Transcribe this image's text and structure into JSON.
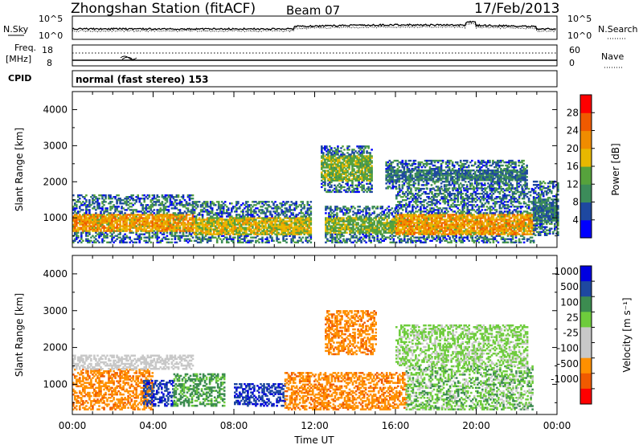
{
  "header": {
    "station": "Zhongshan Station (fitACF)",
    "beam": "Beam 07",
    "date": "17/Feb/2013"
  },
  "noise_panel": {
    "left_label": "N.Sky",
    "right_label": "N.Search",
    "left_ticks": [
      "10^5",
      "10^0"
    ],
    "right_ticks": [
      "10^5",
      "10^0"
    ]
  },
  "freq_panel": {
    "left_label_1": "Freq.",
    "left_label_2": "[MHz]",
    "right_label": "Nave",
    "left_ticks": [
      "18",
      "8"
    ],
    "right_ticks": [
      "60",
      "0"
    ]
  },
  "cpid_panel": {
    "label": "CPID",
    "text": "normal (fast stereo) 153"
  },
  "x_axis": {
    "label": "Time UT",
    "ticks": [
      "00:00",
      "04:00",
      "08:00",
      "12:00",
      "16:00",
      "20:00",
      "00:00"
    ]
  },
  "colors": {
    "power_scale": [
      "#0000ff",
      "#1e48a0",
      "#3c8c5a",
      "#56a23c",
      "#e8b800",
      "#f08c00",
      "#f05a00",
      "#ff0000"
    ],
    "velocity_scale": [
      "#ff0000",
      "#f05a00",
      "#ff9000",
      "#c8c8c8",
      "#c8c8c8",
      "#6ecc3c",
      "#3c8c50",
      "#1e48a0",
      "#0000e0"
    ]
  },
  "chart_data": [
    {
      "type": "heatmap",
      "title": "Power",
      "xlabel": "",
      "ylabel": "Slant Range [km]",
      "xlim_hours": [
        0,
        24
      ],
      "ylim": [
        180,
        4500
      ],
      "yticks": [
        1000,
        2000,
        3000,
        4000
      ],
      "colorbar": {
        "label": "Power [dB]",
        "range": [
          0,
          32
        ],
        "ticks": [
          "4",
          "8",
          "12",
          "16",
          "20",
          "24",
          "28"
        ]
      },
      "echo_bands": [
        {
          "t0": 0.0,
          "t1": 6.0,
          "r_lo": 300,
          "r_hi": 1650,
          "core_lo": 600,
          "core_hi": 1100,
          "peak_db": 26
        },
        {
          "t0": 6.0,
          "t1": 11.8,
          "r_lo": 300,
          "r_hi": 1450,
          "core_lo": 500,
          "core_hi": 1000,
          "peak_db": 22
        },
        {
          "t0": 12.3,
          "t1": 14.8,
          "r_lo": 1700,
          "r_hi": 3000,
          "core_lo": 2000,
          "core_hi": 2700,
          "peak_db": 20
        },
        {
          "t0": 12.5,
          "t1": 16.0,
          "r_lo": 300,
          "r_hi": 1300,
          "core_lo": 550,
          "core_hi": 1000,
          "peak_db": 18
        },
        {
          "t0": 16.0,
          "t1": 22.8,
          "r_lo": 300,
          "r_hi": 1800,
          "core_lo": 500,
          "core_hi": 1100,
          "peak_db": 28
        },
        {
          "t0": 15.5,
          "t1": 22.5,
          "r_lo": 1800,
          "r_hi": 2600,
          "core_lo": 2000,
          "core_hi": 2300,
          "peak_db": 12
        },
        {
          "t0": 22.8,
          "t1": 24.0,
          "r_lo": 500,
          "r_hi": 2000,
          "core_lo": 900,
          "core_hi": 1500,
          "peak_db": 10
        }
      ]
    },
    {
      "type": "heatmap",
      "title": "Velocity",
      "xlabel": "Time UT",
      "ylabel": "Slant Range [km]",
      "xlim_hours": [
        0,
        24
      ],
      "ylim": [
        180,
        4500
      ],
      "yticks": [
        1000,
        2000,
        3000,
        4000
      ],
      "colorbar": {
        "label": "Velocity [m s⁻¹]",
        "ticks": [
          "1000",
          "500",
          "100",
          "25",
          "-25",
          "-100",
          "-500",
          "-1000"
        ]
      },
      "echo_bands": [
        {
          "t0": 0.0,
          "t1": 4.0,
          "r_lo": 300,
          "r_hi": 1400,
          "dominant": "-100 to -500"
        },
        {
          "t0": 0.0,
          "t1": 6.0,
          "r_lo": 1400,
          "r_hi": 1800,
          "dominant": "-25 to 25"
        },
        {
          "t0": 3.5,
          "t1": 5.0,
          "r_lo": 400,
          "r_hi": 1100,
          "dominant": "500 to 1000"
        },
        {
          "t0": 5.0,
          "t1": 7.5,
          "r_lo": 400,
          "r_hi": 1300,
          "dominant": "100 to 500"
        },
        {
          "t0": 8.0,
          "t1": 10.5,
          "r_lo": 400,
          "r_hi": 1000,
          "dominant": "500 to 1000"
        },
        {
          "t0": 10.5,
          "t1": 12.0,
          "r_lo": 300,
          "r_hi": 1300,
          "dominant": "-100 to -500"
        },
        {
          "t0": 12.5,
          "t1": 15.0,
          "r_lo": 1800,
          "r_hi": 3000,
          "dominant": "-100 to -500"
        },
        {
          "t0": 12.0,
          "t1": 16.5,
          "r_lo": 300,
          "r_hi": 1300,
          "dominant": "-100 to -500"
        },
        {
          "t0": 16.5,
          "t1": 22.8,
          "r_lo": 300,
          "r_hi": 1500,
          "dominant": "25 to 500"
        },
        {
          "t0": 16.0,
          "t1": 22.5,
          "r_lo": 1500,
          "r_hi": 2600,
          "dominant": "-25 to 100"
        }
      ]
    }
  ]
}
